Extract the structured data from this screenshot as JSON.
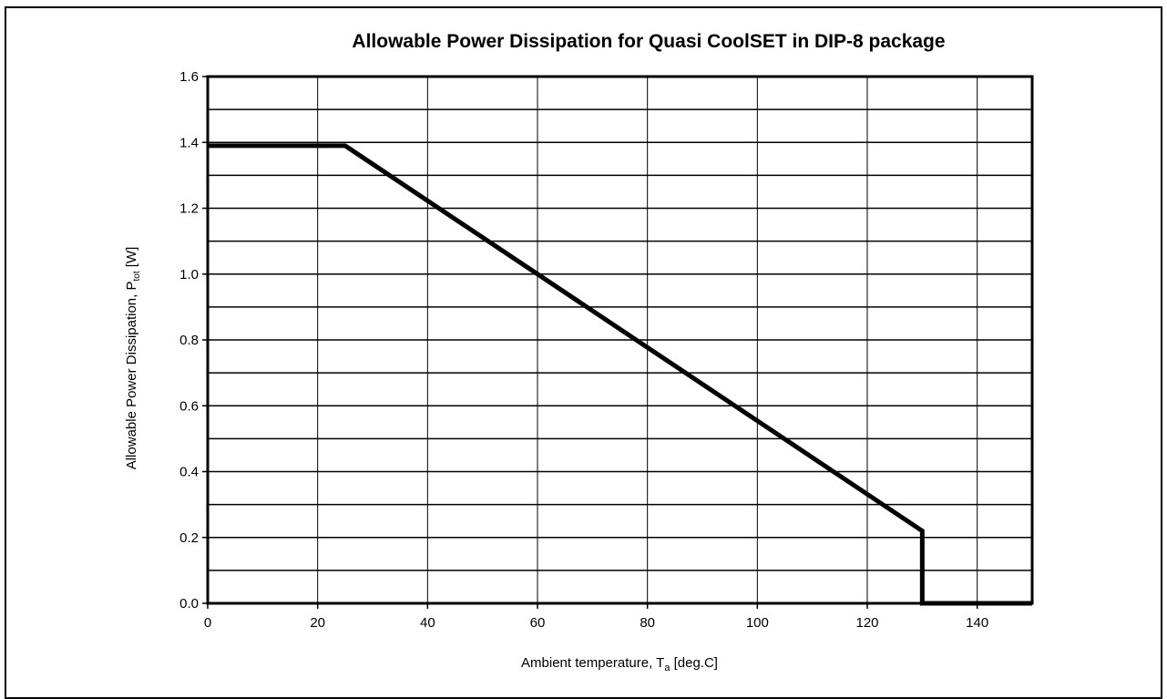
{
  "chart_data": {
    "type": "line",
    "title": "Allowable Power Dissipation for Quasi CoolSET in DIP-8 package",
    "xlabel": {
      "main": "Ambient temperature, T",
      "sub": "a",
      "tail": " [deg.C]"
    },
    "ylabel": {
      "main": "Allowable Power Dissipation, P",
      "sub": "tot",
      "tail": " [W]"
    },
    "xlim": [
      0,
      150
    ],
    "ylim": [
      0,
      1.6
    ],
    "x_ticks": [
      0,
      20,
      40,
      60,
      80,
      100,
      120,
      140
    ],
    "x_tick_labels": [
      "0",
      "20",
      "40",
      "60",
      "80",
      "100",
      "120",
      "140"
    ],
    "y_ticks": [
      0,
      0.2,
      0.4,
      0.6,
      0.8,
      1.0,
      1.2,
      1.4,
      1.6
    ],
    "y_tick_labels": [
      "0.0",
      "0.2",
      "0.4",
      "0.6",
      "0.8",
      "1.0",
      "1.2",
      "1.4",
      "1.6"
    ],
    "x_grid": [
      0,
      20,
      40,
      60,
      80,
      100,
      120,
      140
    ],
    "y_grid": [
      0,
      0.1,
      0.2,
      0.3,
      0.4,
      0.5,
      0.6,
      0.7,
      0.8,
      0.9,
      1.0,
      1.1,
      1.2,
      1.3,
      1.4,
      1.5,
      1.6
    ],
    "grid": true,
    "series": [
      {
        "x": [
          0,
          25,
          130,
          130,
          150
        ],
        "y": [
          1.39,
          1.39,
          0.22,
          0,
          0
        ],
        "color": "#000000"
      }
    ]
  }
}
